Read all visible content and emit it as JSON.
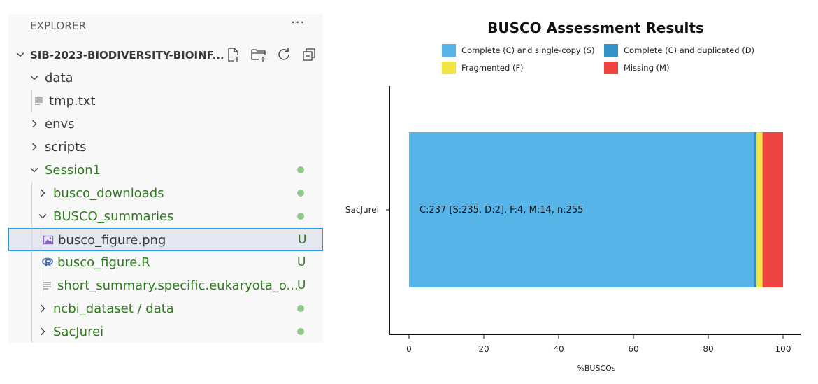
{
  "explorer": {
    "header": "EXPLORER",
    "more": "···",
    "workspace": "SIB-2023-BIODIVERSITY-BIOINF...",
    "items": [
      {
        "label": "data",
        "type": "folder",
        "open": true,
        "depth": 1,
        "git": false,
        "status": ""
      },
      {
        "label": "tmp.txt",
        "type": "file",
        "icon": "text",
        "depth": 2,
        "git": false,
        "status": ""
      },
      {
        "label": "envs",
        "type": "folder",
        "open": false,
        "depth": 1,
        "git": false,
        "status": ""
      },
      {
        "label": "scripts",
        "type": "folder",
        "open": false,
        "depth": 1,
        "git": false,
        "status": ""
      },
      {
        "label": "Session1",
        "type": "folder",
        "open": true,
        "depth": 1,
        "git": true,
        "status": "dot"
      },
      {
        "label": "busco_downloads",
        "type": "folder",
        "open": false,
        "depth": 2,
        "git": true,
        "status": "dot"
      },
      {
        "label": "BUSCO_summaries",
        "type": "folder",
        "open": true,
        "depth": 2,
        "git": true,
        "status": "dot"
      },
      {
        "label": "busco_figure.png",
        "type": "file",
        "icon": "image",
        "depth": 3,
        "git": false,
        "status": "U",
        "selected": true
      },
      {
        "label": "busco_figure.R",
        "type": "file",
        "icon": "r",
        "depth": 3,
        "git": true,
        "status": "U"
      },
      {
        "label": "short_summary.specific.eukaryota_o...",
        "type": "file",
        "icon": "text",
        "depth": 3,
        "git": true,
        "status": "U"
      },
      {
        "label": "ncbi_dataset / data",
        "type": "folder",
        "open": false,
        "depth": 2,
        "git": true,
        "status": "dot"
      },
      {
        "label": "SacJurei",
        "type": "folder",
        "open": false,
        "depth": 2,
        "git": true,
        "status": "dot"
      }
    ]
  },
  "chart_data": {
    "type": "bar",
    "orientation": "horizontal",
    "stacked": true,
    "title": "BUSCO Assessment Results",
    "xlabel": "%BUSCOs",
    "ylabel": "",
    "xlim": [
      0,
      100
    ],
    "xticks": [
      0,
      20,
      40,
      60,
      80,
      100
    ],
    "categories": [
      "SacJurei"
    ],
    "series": [
      {
        "name": "Complete (C) and single-copy (S)",
        "values": [
          92.16
        ],
        "color": "#56b4e9"
      },
      {
        "name": "Complete (C) and duplicated (D)",
        "values": [
          0.78
        ],
        "color": "#3492c7"
      },
      {
        "name": "Fragmented (F)",
        "values": [
          1.57
        ],
        "color": "#f0e442"
      },
      {
        "name": "Missing (M)",
        "values": [
          5.49
        ],
        "color": "#f04442"
      }
    ],
    "annotation": "C:237 [S:235, D:2], F:4, M:14, n:255",
    "legend_position": "top",
    "grid": false
  }
}
